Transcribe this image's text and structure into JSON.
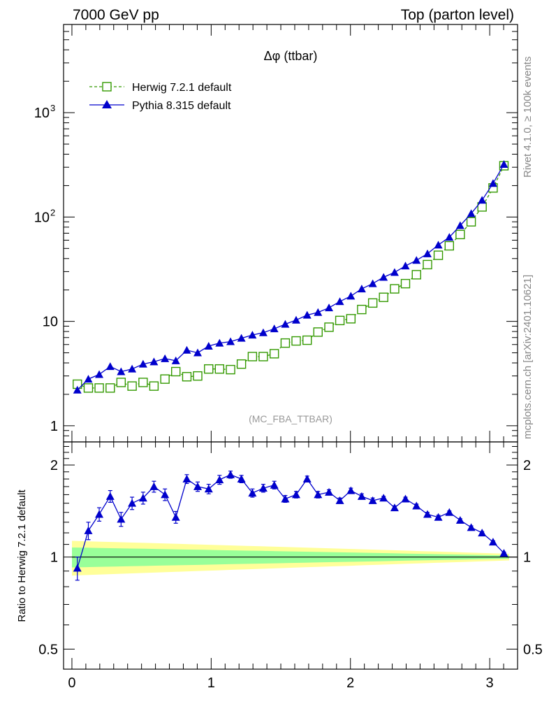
{
  "header": {
    "left": "7000 GeV pp",
    "right": "Top (parton level)"
  },
  "side_labels": {
    "rivet": "Rivet 4.1.0, ≥ 100k events",
    "mcplots": "mcplots.cern.ch [arXiv:2401.10621]"
  },
  "chart_data": [
    {
      "type": "line",
      "title": "Δφ (ttbar)",
      "watermark": "(MC_FBA_TTBAR)",
      "yscale": "log",
      "ylim": [
        0.7,
        7000
      ],
      "xlim": [
        -0.06,
        3.2
      ],
      "yticks": [
        {
          "value": 1,
          "label": "1"
        },
        {
          "value": 10,
          "label": "10"
        },
        {
          "value": 100,
          "label": "10",
          "sup": "2"
        },
        {
          "value": 1000,
          "label": "10",
          "sup": "3"
        }
      ],
      "legend_position": "top-left",
      "x": [
        0.039,
        0.118,
        0.196,
        0.275,
        0.353,
        0.432,
        0.511,
        0.589,
        0.668,
        0.746,
        0.825,
        0.903,
        0.982,
        1.06,
        1.139,
        1.217,
        1.296,
        1.374,
        1.453,
        1.532,
        1.61,
        1.689,
        1.767,
        1.846,
        1.924,
        2.003,
        2.081,
        2.16,
        2.238,
        2.317,
        2.395,
        2.474,
        2.553,
        2.631,
        2.71,
        2.788,
        2.867,
        2.945,
        3.024,
        3.102
      ],
      "series": [
        {
          "name": "Herwig 7.2.1 default",
          "color": "#339900",
          "style": "dashed",
          "marker": "open-square",
          "values": [
            2.5,
            2.3,
            2.3,
            2.3,
            2.6,
            2.4,
            2.6,
            2.4,
            2.8,
            3.3,
            2.95,
            3.0,
            3.5,
            3.5,
            3.45,
            3.9,
            4.6,
            4.6,
            4.9,
            6.2,
            6.5,
            6.6,
            7.9,
            8.8,
            10.2,
            10.6,
            13.0,
            15.0,
            17.0,
            20.5,
            23.0,
            28.0,
            35.0,
            43.0,
            53.0,
            68.0,
            90.0,
            125.0,
            190.0,
            310.0
          ]
        },
        {
          "name": "Pythia 8.315 default",
          "color": "#0000cc",
          "style": "solid",
          "marker": "filled-triangle",
          "values": [
            2.2,
            2.8,
            3.1,
            3.7,
            3.3,
            3.5,
            3.9,
            4.1,
            4.4,
            4.2,
            5.3,
            5.0,
            5.8,
            6.2,
            6.4,
            6.9,
            7.4,
            7.8,
            8.5,
            9.4,
            10.3,
            11.5,
            12.2,
            13.5,
            15.5,
            17.5,
            20.5,
            23.0,
            26.5,
            29.5,
            34.0,
            38.5,
            44.5,
            54.0,
            64.0,
            83.0,
            108.0,
            145.0,
            210.0,
            320.0
          ]
        }
      ]
    },
    {
      "type": "line",
      "ylabel": "Ratio to Herwig 7.2.1 default",
      "yscale": "log",
      "ylim": [
        0.43,
        2.38
      ],
      "xlim": [
        -0.06,
        3.2
      ],
      "yticks": [
        {
          "value": 0.5,
          "label": "0.5"
        },
        {
          "value": 1,
          "label": "1"
        },
        {
          "value": 2,
          "label": "2"
        }
      ],
      "xticks": [
        {
          "value": 0,
          "label": "0"
        },
        {
          "value": 1,
          "label": "1"
        },
        {
          "value": 2,
          "label": "2"
        },
        {
          "value": 3,
          "label": "3"
        }
      ],
      "reference_line": 1.0,
      "bands": [
        {
          "name": "yellow",
          "color": "#ffff99",
          "halfwidth_start": 0.13,
          "halfwidth_end": 0.025
        },
        {
          "name": "green",
          "color": "#99ff99",
          "halfwidth_start": 0.075,
          "halfwidth_end": 0.012
        }
      ],
      "series": [
        {
          "name": "Pythia 8.315 default",
          "color": "#0000cc",
          "values": [
            0.92,
            1.22,
            1.38,
            1.58,
            1.33,
            1.5,
            1.56,
            1.7,
            1.6,
            1.35,
            1.8,
            1.7,
            1.67,
            1.79,
            1.86,
            1.8,
            1.62,
            1.68,
            1.72,
            1.55,
            1.6,
            1.8,
            1.6,
            1.63,
            1.53,
            1.65,
            1.58,
            1.53,
            1.56,
            1.45,
            1.55,
            1.47,
            1.38,
            1.35,
            1.4,
            1.32,
            1.25,
            1.2,
            1.12,
            1.03
          ],
          "errors": [
            0.08,
            0.08,
            0.07,
            0.07,
            0.07,
            0.07,
            0.07,
            0.07,
            0.07,
            0.06,
            0.06,
            0.06,
            0.06,
            0.06,
            0.05,
            0.05,
            0.05,
            0.05,
            0.05,
            0.04,
            0.04,
            0.04,
            0.04,
            0.03,
            0.03,
            0.03,
            0.03,
            0.03,
            0.02,
            0.02,
            0.02,
            0.02,
            0.02,
            0.02,
            0.015,
            0.015,
            0.015,
            0.012,
            0.01,
            0.008
          ]
        }
      ]
    }
  ]
}
